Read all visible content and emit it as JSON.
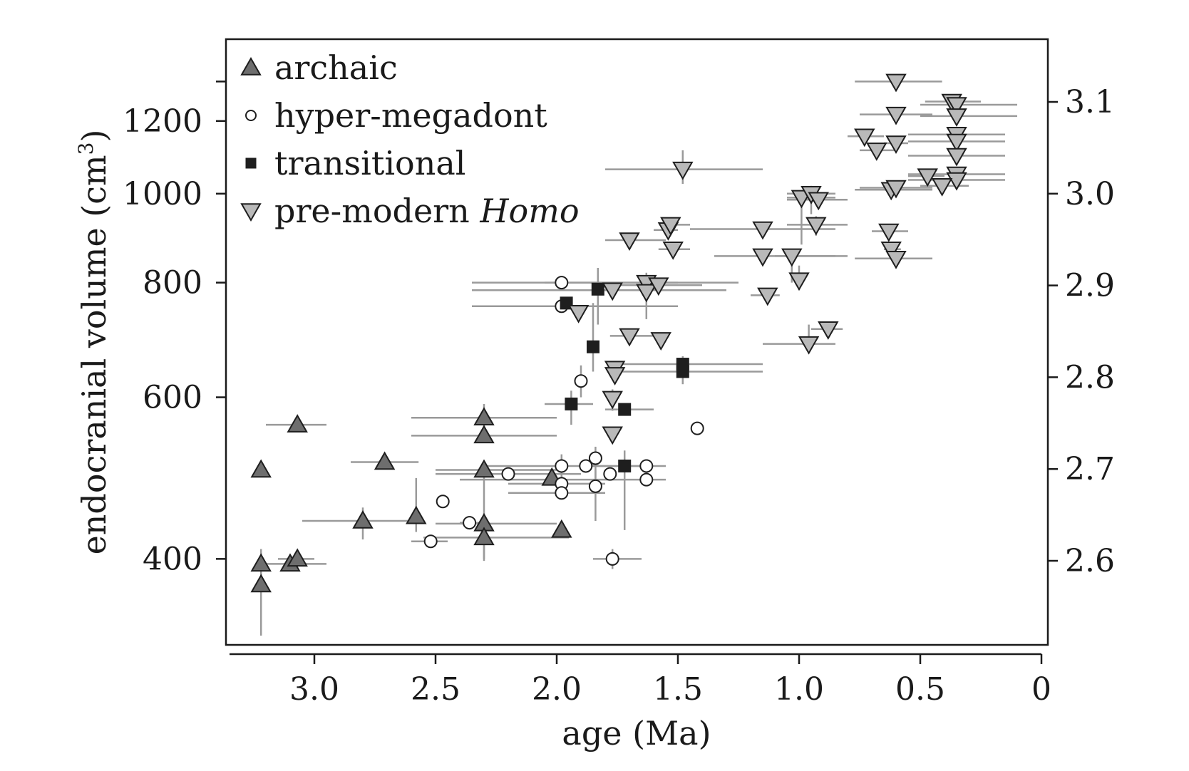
{
  "chart_data": {
    "type": "scatter",
    "xlabel": "age (Ma)",
    "ylabel": "endocranial volume (cm",
    "ylabel_sup": "3",
    "ylabel_end": ")",
    "x_reversed": true,
    "xlim": [
      3.35,
      0
    ],
    "ylim_log10": [
      2.53,
      3.145
    ],
    "y_scale": "log",
    "xticks": [
      "3.0",
      "2.5",
      "2.0",
      "1.5",
      "1.0",
      "0.5",
      "0"
    ],
    "xtick_values": [
      3.0,
      2.5,
      2.0,
      1.5,
      1.0,
      0.5,
      0
    ],
    "yticks_left": [
      "400",
      "600",
      "800",
      "1000",
      "1200"
    ],
    "ytick_left_values": [
      400,
      600,
      800,
      1000,
      1200
    ],
    "yticks_right": [
      "2.6",
      "2.7",
      "2.8",
      "2.9",
      "3.0",
      "3.1"
    ],
    "ytick_right_values": [
      2.6,
      2.7,
      2.8,
      2.9,
      3.0,
      3.1
    ],
    "legend_position": "top-left",
    "legend": [
      {
        "key": "archaic",
        "label": "archaic",
        "italic": ""
      },
      {
        "key": "hyper",
        "label": "hyper-megadont ",
        "italic": ""
      },
      {
        "key": "transitional",
        "label": "transitional",
        "italic": ""
      },
      {
        "key": "premodern",
        "label": "pre-modern ",
        "italic": "Homo"
      }
    ],
    "colors": {
      "archaic_fill": "#6e6e6e",
      "hyper_fill": "#ffffff",
      "transitional_fill": "#1e1e1e",
      "premodern_fill": "#b9b9b9",
      "marker_stroke": "#1e1e1e",
      "errorbar": "#9a9a9a"
    },
    "series": [
      {
        "key": "archaic",
        "marker": "triangle-up",
        "points": [
          {
            "x": 3.22,
            "y": 395
          },
          {
            "x": 3.22,
            "y": 375,
            "ylo": 330,
            "yhi": 410
          },
          {
            "x": 3.1,
            "y": 395,
            "xlo": 3.2,
            "xhi": 2.95
          },
          {
            "x": 3.07,
            "y": 400,
            "xlo": 3.15,
            "xhi": 3.0
          },
          {
            "x": 3.07,
            "y": 560,
            "xlo": 3.2,
            "xhi": 2.95
          },
          {
            "x": 3.22,
            "y": 500
          },
          {
            "x": 2.71,
            "y": 510,
            "xlo": 2.85,
            "xhi": 2.57
          },
          {
            "x": 2.8,
            "y": 440,
            "xlo": 3.05,
            "xhi": 2.55,
            "ylo": 420,
            "yhi": 455
          },
          {
            "x": 2.58,
            "y": 445,
            "ylo": 428,
            "yhi": 490
          },
          {
            "x": 2.3,
            "y": 570,
            "xlo": 2.6,
            "xhi": 2.0,
            "ylo": 550,
            "yhi": 590
          },
          {
            "x": 2.3,
            "y": 545,
            "xlo": 2.6,
            "xhi": 2.0
          },
          {
            "x": 2.3,
            "y": 500,
            "xlo": 2.5,
            "xhi": 2.0
          },
          {
            "x": 2.3,
            "y": 437,
            "xlo": 2.5,
            "xhi": 2.0,
            "ylo": 400,
            "yhi": 500
          },
          {
            "x": 2.3,
            "y": 422,
            "xlo": 2.55,
            "xhi": 1.95,
            "ylo": 398,
            "yhi": 445
          },
          {
            "x": 2.02,
            "y": 490
          },
          {
            "x": 1.98,
            "y": 430
          }
        ]
      },
      {
        "key": "hyper",
        "marker": "circle",
        "points": [
          {
            "x": 2.47,
            "y": 462
          },
          {
            "x": 2.52,
            "y": 418,
            "xlo": 2.6,
            "xhi": 2.45
          },
          {
            "x": 2.36,
            "y": 438,
            "xlo": 2.4,
            "xhi": 2.3
          },
          {
            "x": 2.2,
            "y": 495,
            "xlo": 2.5,
            "xhi": 1.9
          },
          {
            "x": 1.98,
            "y": 800,
            "xlo": 2.35,
            "xhi": 1.5
          },
          {
            "x": 1.98,
            "y": 754,
            "xlo": 2.35,
            "xhi": 1.5
          },
          {
            "x": 1.9,
            "y": 625,
            "ylo": 600,
            "yhi": 650
          },
          {
            "x": 1.98,
            "y": 505,
            "xlo": 2.3,
            "xhi": 1.6,
            "ylo": 490,
            "yhi": 520
          },
          {
            "x": 1.98,
            "y": 483,
            "xlo": 2.2,
            "xhi": 1.8
          },
          {
            "x": 1.98,
            "y": 472,
            "xlo": 2.2,
            "xhi": 1.8
          },
          {
            "x": 1.88,
            "y": 505
          },
          {
            "x": 1.84,
            "y": 515,
            "ylo": 490,
            "yhi": 530
          },
          {
            "x": 1.84,
            "y": 480,
            "ylo": 440,
            "yhi": 500
          },
          {
            "x": 1.78,
            "y": 495
          },
          {
            "x": 1.63,
            "y": 505,
            "xlo": 1.9,
            "xhi": 1.55
          },
          {
            "x": 1.63,
            "y": 488,
            "xlo": 2.4,
            "xhi": 1.55
          },
          {
            "x": 1.42,
            "y": 555
          },
          {
            "x": 1.77,
            "y": 400,
            "xlo": 1.85,
            "xhi": 1.65,
            "ylo": 390,
            "yhi": 410
          }
        ]
      },
      {
        "key": "transitional",
        "marker": "square",
        "points": [
          {
            "x": 1.96,
            "y": 760
          },
          {
            "x": 1.83,
            "y": 787,
            "ylo": 720,
            "yhi": 830
          },
          {
            "x": 1.85,
            "y": 681,
            "ylo": 640,
            "yhi": 760
          },
          {
            "x": 1.94,
            "y": 590,
            "xlo": 2.05,
            "xhi": 1.85,
            "ylo": 560,
            "yhi": 610
          },
          {
            "x": 1.72,
            "y": 582,
            "xlo": 1.8,
            "xhi": 1.6
          },
          {
            "x": 1.48,
            "y": 652,
            "xlo": 1.75,
            "xhi": 1.15,
            "ylo": 620,
            "yhi": 665
          },
          {
            "x": 1.48,
            "y": 640,
            "xlo": 1.75,
            "xhi": 1.15
          },
          {
            "x": 1.72,
            "y": 505,
            "ylo": 430,
            "yhi": 525
          }
        ]
      },
      {
        "key": "premodern",
        "marker": "triangle-down",
        "points": [
          {
            "x": 1.91,
            "y": 742
          },
          {
            "x": 1.77,
            "y": 785,
            "xlo": 2.35,
            "xhi": 1.3
          },
          {
            "x": 1.63,
            "y": 800,
            "xlo": 2.05,
            "xhi": 1.25,
            "ylo": 730,
            "yhi": 820
          },
          {
            "x": 1.63,
            "y": 782
          },
          {
            "x": 1.58,
            "y": 795,
            "xlo": 1.8,
            "xhi": 1.4
          },
          {
            "x": 1.7,
            "y": 700,
            "xlo": 1.78,
            "xhi": 1.6
          },
          {
            "x": 1.57,
            "y": 693
          },
          {
            "x": 1.76,
            "y": 645
          },
          {
            "x": 1.76,
            "y": 635
          },
          {
            "x": 1.77,
            "y": 598,
            "ylo": 580,
            "yhi": 612
          },
          {
            "x": 1.77,
            "y": 547
          },
          {
            "x": 1.7,
            "y": 890,
            "xlo": 1.8,
            "xhi": 1.55
          },
          {
            "x": 1.54,
            "y": 913,
            "xlo": 1.6,
            "xhi": 1.5
          },
          {
            "x": 1.53,
            "y": 925,
            "xlo": 1.55,
            "xhi": 1.45
          },
          {
            "x": 1.52,
            "y": 870,
            "xlo": 1.58,
            "xhi": 1.45
          },
          {
            "x": 1.48,
            "y": 1063,
            "xlo": 1.8,
            "xhi": 1.15,
            "ylo": 1025,
            "yhi": 1115
          },
          {
            "x": 1.15,
            "y": 915,
            "xlo": 1.45,
            "xhi": 0.85
          },
          {
            "x": 1.15,
            "y": 855,
            "xlo": 1.35,
            "xhi": 0.85
          },
          {
            "x": 1.03,
            "y": 855,
            "xlo": 1.1,
            "xhi": 0.8,
            "ylo": 800,
            "yhi": 870
          },
          {
            "x": 1.13,
            "y": 775,
            "xlo": 1.2,
            "xhi": 1.08
          },
          {
            "x": 1.0,
            "y": 805,
            "ylo": 785,
            "yhi": 835
          },
          {
            "x": 0.99,
            "y": 990,
            "xlo": 1.05,
            "xhi": 0.85,
            "ylo": 880,
            "yhi": 1000
          },
          {
            "x": 0.95,
            "y": 1000,
            "xlo": 1.05,
            "xhi": 0.85,
            "ylo": 950,
            "yhi": 1020
          },
          {
            "x": 0.92,
            "y": 985,
            "xlo": 1.05,
            "xhi": 0.8
          },
          {
            "x": 0.93,
            "y": 925,
            "xlo": 1.05,
            "xhi": 0.8,
            "ylo": 900,
            "yhi": 945
          },
          {
            "x": 0.96,
            "y": 686,
            "xlo": 1.15,
            "xhi": 0.85,
            "ylo": 670,
            "yhi": 720
          },
          {
            "x": 0.88,
            "y": 712,
            "xlo": 0.95,
            "xhi": 0.82
          },
          {
            "x": 0.6,
            "y": 1325,
            "xlo": 0.77,
            "xhi": 0.41
          },
          {
            "x": 0.6,
            "y": 1220,
            "xlo": 0.75,
            "xhi": 0.45
          },
          {
            "x": 0.73,
            "y": 1155,
            "xlo": 0.8,
            "xhi": 0.65
          },
          {
            "x": 0.68,
            "y": 1115,
            "xlo": 0.75,
            "xhi": 0.6
          },
          {
            "x": 0.6,
            "y": 1135,
            "xlo": 0.65,
            "xhi": 0.55
          },
          {
            "x": 0.62,
            "y": 1010,
            "xlo": 0.77,
            "xhi": 0.45
          },
          {
            "x": 0.6,
            "y": 1015,
            "xlo": 0.75,
            "xhi": 0.45
          },
          {
            "x": 0.63,
            "y": 910,
            "xlo": 0.7,
            "xhi": 0.55
          },
          {
            "x": 0.62,
            "y": 870,
            "xlo": 0.65,
            "xhi": 0.58
          },
          {
            "x": 0.6,
            "y": 850,
            "xlo": 0.77,
            "xhi": 0.45
          },
          {
            "x": 0.37,
            "y": 1260,
            "xlo": 0.48,
            "xhi": 0.25
          },
          {
            "x": 0.35,
            "y": 1250,
            "xlo": 0.5,
            "xhi": 0.1
          },
          {
            "x": 0.35,
            "y": 1215,
            "xlo": 0.5,
            "xhi": 0.1
          },
          {
            "x": 0.35,
            "y": 1160,
            "xlo": 0.55,
            "xhi": 0.15
          },
          {
            "x": 0.35,
            "y": 1140,
            "xlo": 0.55,
            "xhi": 0.15
          },
          {
            "x": 0.35,
            "y": 1100,
            "xlo": 0.55,
            "xhi": 0.15
          },
          {
            "x": 0.47,
            "y": 1045,
            "xlo": 0.55,
            "xhi": 0.4
          },
          {
            "x": 0.35,
            "y": 1050,
            "xlo": 0.55,
            "xhi": 0.15
          },
          {
            "x": 0.35,
            "y": 1035,
            "xlo": 0.55,
            "xhi": 0.15
          },
          {
            "x": 0.41,
            "y": 1020,
            "xlo": 0.5,
            "xhi": 0.3
          }
        ]
      }
    ]
  }
}
